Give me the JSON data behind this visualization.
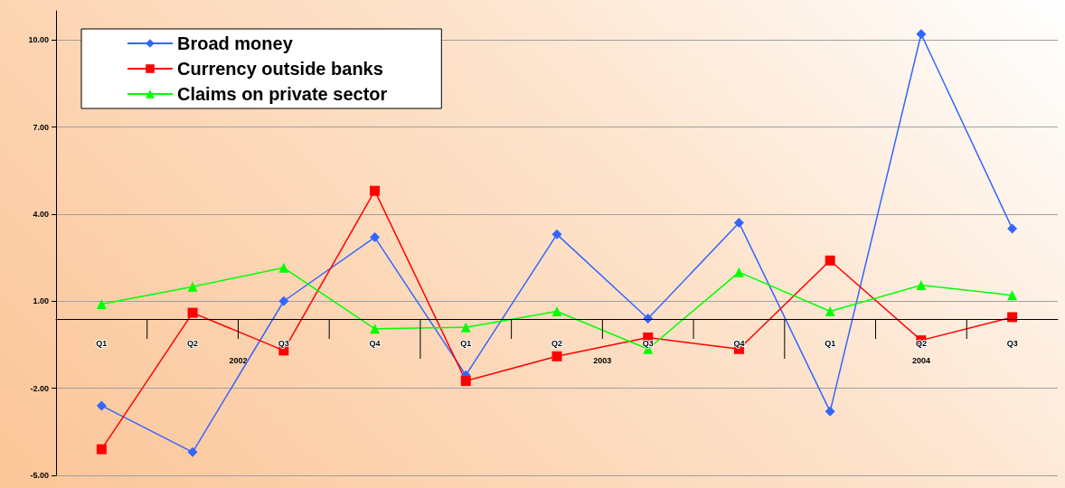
{
  "chart_data": {
    "type": "line",
    "categories": [
      "Q1",
      "Q2",
      "Q3",
      "Q4",
      "Q1",
      "Q2",
      "Q3",
      "Q4",
      "Q1",
      "Q2",
      "Q3"
    ],
    "annotations": [
      "2002",
      "2003",
      "2004"
    ],
    "series": [
      {
        "name": "Broad money",
        "color": "#3366ff",
        "marker": "diamond",
        "values": [
          -2.6,
          -4.2,
          1.0,
          3.2,
          -1.55,
          3.3,
          0.4,
          3.7,
          -2.8,
          10.2,
          3.5
        ]
      },
      {
        "name": "Currency outside banks",
        "color": "#ff0000",
        "marker": "square",
        "values": [
          -4.1,
          0.6,
          -0.7,
          4.8,
          -1.75,
          -0.9,
          -0.25,
          -0.65,
          2.4,
          -0.35,
          0.45
        ]
      },
      {
        "name": "Claims on private sector",
        "color": "#00ff00",
        "marker": "triangle",
        "values": [
          0.9,
          1.5,
          2.15,
          0.05,
          0.1,
          0.65,
          -0.65,
          2.0,
          0.65,
          1.55,
          1.2
        ]
      }
    ],
    "ylim": [
      -5,
      11
    ],
    "yticks": [
      {
        "value": -5,
        "label": "-5.00"
      },
      {
        "value": -2,
        "label": "-2.00"
      },
      {
        "value": 1,
        "label": "1.00"
      },
      {
        "value": 4,
        "label": "4.00"
      },
      {
        "value": 7,
        "label": "7.00"
      },
      {
        "value": 10,
        "label": "10.00"
      }
    ],
    "grid": "y",
    "legend": "top left",
    "line_style": "solid"
  }
}
